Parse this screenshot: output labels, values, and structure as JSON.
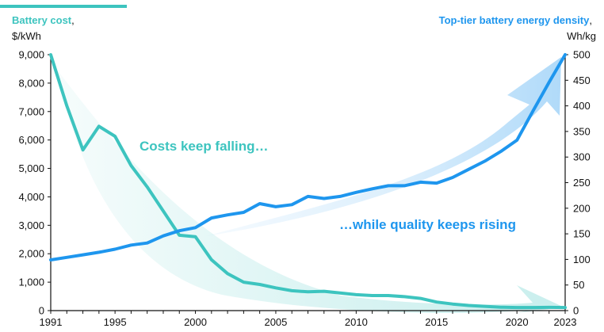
{
  "chart_data": {
    "type": "line",
    "x_range": [
      1991,
      2023
    ],
    "x_ticks": [
      1991,
      1995,
      2000,
      2005,
      2010,
      2015,
      2020,
      2023
    ],
    "left_axis": {
      "title": "Battery cost",
      "title_suffix": ",",
      "unit": "$/kWh",
      "range": [
        0,
        9000
      ],
      "ticks": [
        0,
        1000,
        2000,
        3000,
        4000,
        5000,
        6000,
        7000,
        8000,
        9000
      ],
      "color": "#3dc4bf"
    },
    "right_axis": {
      "title": "Top-tier battery energy density",
      "title_suffix": ",",
      "unit": "Wh/kg",
      "range": [
        0,
        500
      ],
      "ticks": [
        0,
        50,
        100,
        150,
        200,
        250,
        300,
        350,
        400,
        450,
        500
      ],
      "color": "#1e96ee"
    },
    "series": [
      {
        "name": "Battery cost",
        "axis": "left",
        "color": "#3dc4bf",
        "x": [
          1991,
          1992,
          1993,
          1994,
          1995,
          1996,
          1997,
          1998,
          1999,
          2000,
          2001,
          2002,
          2003,
          2004,
          2005,
          2006,
          2007,
          2008,
          2009,
          2010,
          2011,
          2012,
          2013,
          2014,
          2015,
          2016,
          2017,
          2018,
          2019,
          2020,
          2021,
          2022,
          2023
        ],
        "y": [
          9000,
          7200,
          5650,
          6480,
          6130,
          5100,
          4350,
          3500,
          2650,
          2600,
          1790,
          1300,
          1000,
          920,
          800,
          700,
          660,
          680,
          620,
          560,
          530,
          530,
          490,
          430,
          300,
          230,
          180,
          150,
          120,
          110,
          110,
          115,
          110
        ]
      },
      {
        "name": "Top-tier battery energy density",
        "axis": "right",
        "color": "#1e96ee",
        "x": [
          1991,
          1992,
          1993,
          1994,
          1995,
          1996,
          1997,
          1998,
          1999,
          2000,
          2001,
          2002,
          2003,
          2004,
          2005,
          2006,
          2007,
          2008,
          2009,
          2010,
          2011,
          2012,
          2013,
          2014,
          2015,
          2016,
          2017,
          2018,
          2019,
          2020,
          2021,
          2022,
          2023
        ],
        "y": [
          99,
          104,
          109,
          114,
          120,
          128,
          132,
          146,
          156,
          162,
          181,
          187,
          192,
          209,
          203,
          207,
          223,
          219,
          223,
          231,
          238,
          244,
          244,
          251,
          249,
          260,
          276,
          292,
          311,
          333,
          390,
          446,
          500
        ]
      }
    ],
    "annotations": {
      "falling": "Costs keep falling…",
      "rising": "…while quality keeps rising"
    },
    "grid": false,
    "legend": "none"
  }
}
